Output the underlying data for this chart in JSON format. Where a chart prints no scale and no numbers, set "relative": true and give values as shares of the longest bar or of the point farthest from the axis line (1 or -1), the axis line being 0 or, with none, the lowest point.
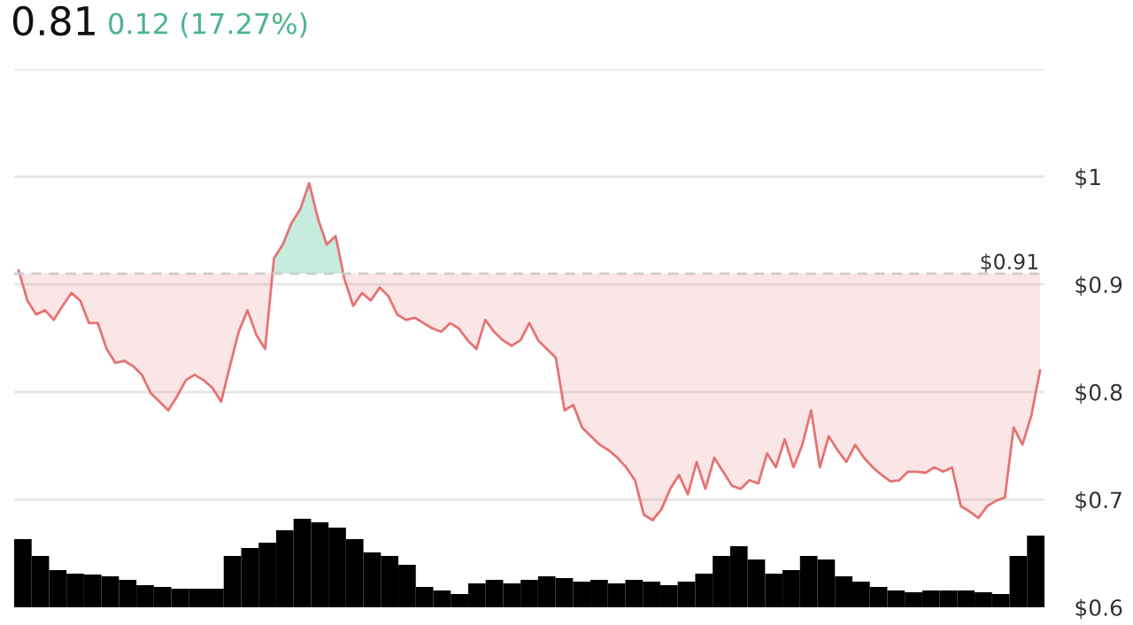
{
  "chart_data": [
    {
      "type": "line",
      "title": "0.81",
      "subtitle": "0.12 (17.27%)",
      "categories": [
        null,
        null,
        null,
        null,
        null,
        null,
        null,
        null,
        null,
        null,
        null,
        null,
        null,
        null,
        null,
        null,
        null,
        null,
        null,
        null,
        null,
        null,
        null,
        null,
        null,
        null,
        null,
        null,
        null,
        null,
        null,
        null,
        null,
        null,
        null,
        null,
        null,
        null,
        null,
        null,
        null,
        null,
        null,
        null,
        null,
        null,
        null,
        null,
        null,
        null,
        null,
        null,
        null,
        null,
        null,
        null,
        null,
        null,
        null,
        null,
        null,
        null,
        null,
        null,
        null,
        null,
        null,
        null,
        null,
        null,
        null,
        null,
        null,
        null,
        null,
        null,
        null,
        null,
        null,
        null,
        null,
        null,
        null,
        null,
        null,
        null,
        null,
        null,
        null,
        null,
        null,
        null,
        null,
        null,
        null,
        null,
        null,
        null,
        null,
        null,
        null,
        null,
        null,
        null,
        null,
        null,
        null,
        null,
        null,
        null,
        null,
        null,
        null,
        null,
        null,
        null,
        null
      ],
      "series": [
        {
          "color": "#e57373",
          "values": [
            0.913,
            0.885,
            0.872,
            0.876,
            0.867,
            0.88,
            0.892,
            0.885,
            0.864,
            0.864,
            0.84,
            0.827,
            0.829,
            0.824,
            0.816,
            0.799,
            0.791,
            0.783,
            0.796,
            0.811,
            0.816,
            0.811,
            0.804,
            0.791,
            0.824,
            0.856,
            0.876,
            0.853,
            0.84,
            0.924,
            0.937,
            0.957,
            0.97,
            0.994,
            0.961,
            0.937,
            0.945,
            0.905,
            0.88,
            0.892,
            0.885,
            0.897,
            0.889,
            0.872,
            0.867,
            0.869,
            0.864,
            0.859,
            0.856,
            0.864,
            0.859,
            0.848,
            0.84,
            0.867,
            0.856,
            0.848,
            0.843,
            0.848,
            0.864,
            0.848,
            0.84,
            0.832,
            0.783,
            0.788,
            0.767,
            0.759,
            0.751,
            0.746,
            0.739,
            0.73,
            0.718,
            0.686,
            0.681,
            0.691,
            0.71,
            0.723,
            0.705,
            0.735,
            0.71,
            0.739,
            0.726,
            0.713,
            0.71,
            0.718,
            0.715,
            0.743,
            0.73,
            0.756,
            0.73,
            0.751,
            0.783,
            0.73,
            0.759,
            0.746,
            0.735,
            0.751,
            0.739,
            0.73,
            0.723,
            0.717,
            0.718,
            0.726,
            0.726,
            0.725,
            0.73,
            0.726,
            0.73,
            0.694,
            0.689,
            0.683,
            0.694,
            0.699,
            0.702,
            0.767,
            0.751,
            0.778,
            0.82
          ]
        }
      ],
      "ylim": [
        0.6,
        1.1
      ],
      "yticks": [
        {
          "value": 0.6,
          "label": "$0.6"
        },
        {
          "value": 0.7,
          "label": "$0.7"
        },
        {
          "value": 0.8,
          "label": "$0.8"
        },
        {
          "value": 0.9,
          "label": "$0.9"
        },
        {
          "value": 1.0,
          "label": "$1"
        },
        {
          "value": 1.1,
          "label": null
        }
      ],
      "ref_lines": [
        {
          "axis": "y",
          "value": 0.91,
          "label": "$0.91",
          "color": "#cccccc",
          "line_style": "dashed"
        }
      ],
      "grid": "y",
      "tick_labels": "y"
    },
    {
      "type": "bar",
      "relative": true,
      "tick_labels": false,
      "categories": [
        null,
        null,
        null,
        null,
        null,
        null,
        null,
        null,
        null,
        null,
        null,
        null,
        null,
        null,
        null,
        null,
        null,
        null,
        null,
        null,
        null,
        null,
        null,
        null,
        null,
        null,
        null,
        null,
        null,
        null,
        null,
        null,
        null,
        null,
        null,
        null,
        null,
        null,
        null,
        null,
        null,
        null,
        null,
        null,
        null,
        null,
        null,
        null,
        null,
        null,
        null,
        null,
        null,
        null,
        null,
        null,
        null,
        null,
        null
      ],
      "series": [
        {
          "color": "#000000",
          "values": [
            0.77,
            0.58,
            0.42,
            0.38,
            0.37,
            0.35,
            0.31,
            0.25,
            0.23,
            0.21,
            0.21,
            0.21,
            0.58,
            0.67,
            0.73,
            0.87,
            1,
            0.96,
            0.9,
            0.77,
            0.62,
            0.58,
            0.48,
            0.23,
            0.19,
            0.15,
            0.27,
            0.31,
            0.27,
            0.31,
            0.35,
            0.33,
            0.29,
            0.31,
            0.27,
            0.31,
            0.29,
            0.25,
            0.29,
            0.38,
            0.58,
            0.69,
            0.54,
            0.38,
            0.42,
            0.58,
            0.54,
            0.35,
            0.29,
            0.23,
            0.19,
            0.17,
            0.19,
            0.19,
            0.19,
            0.17,
            0.15,
            0.58,
            0.81
          ]
        }
      ]
    }
  ]
}
